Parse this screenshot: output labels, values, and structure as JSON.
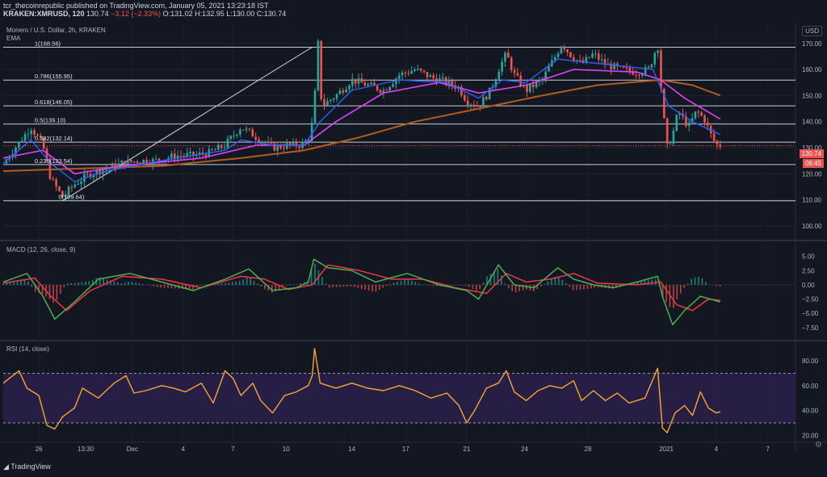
{
  "header": {
    "publisher": "tcr_thecoinrepublic published on TradingView.com, January 05, 2021 13:23:18 IST",
    "symbol": "KRAKEN:XMRUSD, 120",
    "last": "130.74",
    "change": "−3.12 (−2.33%)",
    "ohlc": "O:131.02 H:132.95 L:130.00 C:130.74"
  },
  "panes": {
    "main_title": "Monero / U.S. Dollar, 2h, KRAKEN",
    "ema_label": "EMA",
    "macd_label": "MACD (12, 26, close, 9)",
    "rsi_label": "RSI (14, close)",
    "currency_button": "USD",
    "price_tag": "130.74",
    "countdown_tag": "06:45"
  },
  "footer": {
    "brand": "TradingView"
  },
  "icons": {
    "settings": "gear-icon",
    "logo": "tradingview-logo-icon"
  },
  "colors": {
    "background": "#131722",
    "up": "#26a69a",
    "down": "#ef5350",
    "ema_fast": "#2962ff",
    "ema_mid": "#e040fb",
    "ema_slow": "#b35c1e",
    "macd": "#4caf50",
    "signal": "#f23645",
    "rsi": "#f7a72e",
    "rsi_band": "#2a1f4a"
  },
  "chart_data": [
    {
      "type": "candlestick",
      "title": "Monero / U.S. Dollar, 2h, KRAKEN",
      "ylim": [
        95,
        178
      ],
      "y_ticks": [
        100,
        110,
        120,
        130,
        140,
        150,
        160,
        170
      ],
      "x_ticks": [
        "26",
        "13:30",
        "Dec",
        "4",
        "7",
        "10",
        "14",
        "17",
        "21",
        "24",
        "28",
        "2021",
        "4",
        "7"
      ],
      "x_tick_pos": [
        0.045,
        0.104,
        0.163,
        0.227,
        0.29,
        0.357,
        0.44,
        0.508,
        0.585,
        0.658,
        0.738,
        0.837,
        0.9,
        0.965
      ],
      "fib_levels": [
        {
          "label": "1(168.56)",
          "value": 168.56
        },
        {
          "label": "0.786(155.95)",
          "value": 155.95
        },
        {
          "label": "0.618(146.05)",
          "value": 146.05
        },
        {
          "label": "0.5(139.10)",
          "value": 139.1
        },
        {
          "label": "0.382(132.14)",
          "value": 132.14
        },
        {
          "label": "0.236(123.54)",
          "value": 123.54
        },
        {
          "label": "0(109.64)",
          "value": 109.64
        }
      ],
      "trendline": {
        "from": [
          0.075,
          109.6
        ],
        "to": [
          0.39,
          168.6
        ]
      },
      "close_path": [
        [
          0,
          124
        ],
        [
          0.02,
          132
        ],
        [
          0.035,
          138
        ],
        [
          0.05,
          131
        ],
        [
          0.06,
          118
        ],
        [
          0.075,
          111
        ],
        [
          0.09,
          116
        ],
        [
          0.11,
          120
        ],
        [
          0.13,
          122
        ],
        [
          0.15,
          124
        ],
        [
          0.17,
          125
        ],
        [
          0.19,
          125
        ],
        [
          0.22,
          127
        ],
        [
          0.24,
          127
        ],
        [
          0.26,
          128
        ],
        [
          0.28,
          131
        ],
        [
          0.3,
          138
        ],
        [
          0.32,
          134
        ],
        [
          0.34,
          130
        ],
        [
          0.36,
          131
        ],
        [
          0.375,
          131
        ],
        [
          0.385,
          133
        ],
        [
          0.392,
          142
        ],
        [
          0.397,
          172
        ],
        [
          0.402,
          146
        ],
        [
          0.42,
          150
        ],
        [
          0.44,
          156
        ],
        [
          0.46,
          154
        ],
        [
          0.48,
          152
        ],
        [
          0.5,
          158
        ],
        [
          0.52,
          160
        ],
        [
          0.54,
          157
        ],
        [
          0.56,
          155
        ],
        [
          0.575,
          153
        ],
        [
          0.585,
          148
        ],
        [
          0.6,
          146
        ],
        [
          0.615,
          152
        ],
        [
          0.625,
          160
        ],
        [
          0.635,
          166
        ],
        [
          0.645,
          158
        ],
        [
          0.66,
          152
        ],
        [
          0.68,
          156
        ],
        [
          0.695,
          164
        ],
        [
          0.705,
          170
        ],
        [
          0.715,
          166
        ],
        [
          0.73,
          162
        ],
        [
          0.745,
          166
        ],
        [
          0.76,
          162
        ],
        [
          0.78,
          160
        ],
        [
          0.8,
          159
        ],
        [
          0.815,
          160
        ],
        [
          0.826,
          170
        ],
        [
          0.832,
          146
        ],
        [
          0.838,
          130
        ],
        [
          0.845,
          135
        ],
        [
          0.852,
          144
        ],
        [
          0.865,
          138
        ],
        [
          0.875,
          144
        ],
        [
          0.885,
          141
        ],
        [
          0.893,
          135
        ],
        [
          0.9,
          131
        ],
        [
          0.905,
          131
        ]
      ],
      "ema_fast_path": [
        [
          0,
          124
        ],
        [
          0.035,
          133
        ],
        [
          0.06,
          124
        ],
        [
          0.09,
          117
        ],
        [
          0.13,
          121
        ],
        [
          0.2,
          125
        ],
        [
          0.28,
          129
        ],
        [
          0.3,
          133
        ],
        [
          0.34,
          131
        ],
        [
          0.38,
          131
        ],
        [
          0.4,
          140
        ],
        [
          0.44,
          152
        ],
        [
          0.5,
          156
        ],
        [
          0.56,
          155
        ],
        [
          0.6,
          149
        ],
        [
          0.63,
          156
        ],
        [
          0.66,
          155
        ],
        [
          0.7,
          164
        ],
        [
          0.76,
          162
        ],
        [
          0.82,
          160
        ],
        [
          0.84,
          146
        ],
        [
          0.87,
          140
        ],
        [
          0.905,
          135
        ]
      ],
      "ema_mid_path": [
        [
          0,
          126
        ],
        [
          0.05,
          129
        ],
        [
          0.09,
          120
        ],
        [
          0.15,
          123
        ],
        [
          0.25,
          126
        ],
        [
          0.32,
          131
        ],
        [
          0.38,
          131
        ],
        [
          0.42,
          140
        ],
        [
          0.48,
          151
        ],
        [
          0.55,
          155
        ],
        [
          0.6,
          151
        ],
        [
          0.66,
          154
        ],
        [
          0.72,
          160
        ],
        [
          0.8,
          159
        ],
        [
          0.83,
          156
        ],
        [
          0.86,
          149
        ],
        [
          0.905,
          141
        ]
      ],
      "ema_slow_path": [
        [
          0,
          121
        ],
        [
          0.1,
          122
        ],
        [
          0.2,
          123
        ],
        [
          0.3,
          126
        ],
        [
          0.38,
          129
        ],
        [
          0.45,
          134
        ],
        [
          0.52,
          140
        ],
        [
          0.6,
          145
        ],
        [
          0.68,
          150
        ],
        [
          0.75,
          154
        ],
        [
          0.83,
          156
        ],
        [
          0.87,
          154
        ],
        [
          0.905,
          150
        ]
      ]
    },
    {
      "type": "line",
      "title": "MACD (12, 26, close, 9)",
      "ylim": [
        -9.5,
        7.5
      ],
      "y_ticks": [
        "5.00",
        "2.50",
        "0.00",
        "−2.50",
        "−5.00",
        "−7.50"
      ],
      "y_tick_values": [
        5,
        2.5,
        0,
        -2.5,
        -5,
        -7.5
      ],
      "macd_path": [
        [
          0,
          0.5
        ],
        [
          0.03,
          2
        ],
        [
          0.05,
          -2
        ],
        [
          0.065,
          -6
        ],
        [
          0.09,
          -3
        ],
        [
          0.12,
          1
        ],
        [
          0.16,
          2
        ],
        [
          0.2,
          0.5
        ],
        [
          0.24,
          -1
        ],
        [
          0.28,
          1
        ],
        [
          0.31,
          2.8
        ],
        [
          0.34,
          -1
        ],
        [
          0.37,
          -0.5
        ],
        [
          0.385,
          0.5
        ],
        [
          0.392,
          4.5
        ],
        [
          0.41,
          3
        ],
        [
          0.44,
          2.5
        ],
        [
          0.47,
          0.5
        ],
        [
          0.51,
          2
        ],
        [
          0.55,
          0
        ],
        [
          0.585,
          -1
        ],
        [
          0.6,
          -2.5
        ],
        [
          0.625,
          3.5
        ],
        [
          0.645,
          0
        ],
        [
          0.67,
          -0.5
        ],
        [
          0.7,
          3
        ],
        [
          0.72,
          1
        ],
        [
          0.745,
          0
        ],
        [
          0.77,
          -0.5
        ],
        [
          0.8,
          0.5
        ],
        [
          0.826,
          1.5
        ],
        [
          0.832,
          -2
        ],
        [
          0.845,
          -7
        ],
        [
          0.86,
          -4.5
        ],
        [
          0.88,
          -2
        ],
        [
          0.905,
          -3
        ]
      ],
      "signal_path": [
        [
          0,
          0.3
        ],
        [
          0.04,
          1.2
        ],
        [
          0.06,
          -2
        ],
        [
          0.08,
          -4.5
        ],
        [
          0.11,
          -1
        ],
        [
          0.15,
          1.5
        ],
        [
          0.2,
          1
        ],
        [
          0.25,
          -0.5
        ],
        [
          0.3,
          1.5
        ],
        [
          0.33,
          1
        ],
        [
          0.36,
          -0.8
        ],
        [
          0.39,
          0
        ],
        [
          0.41,
          3.5
        ],
        [
          0.45,
          2.5
        ],
        [
          0.49,
          1
        ],
        [
          0.53,
          1
        ],
        [
          0.57,
          -0.5
        ],
        [
          0.61,
          -1.5
        ],
        [
          0.635,
          2
        ],
        [
          0.66,
          0.5
        ],
        [
          0.69,
          1
        ],
        [
          0.72,
          2
        ],
        [
          0.75,
          0.3
        ],
        [
          0.8,
          0
        ],
        [
          0.83,
          0.5
        ],
        [
          0.85,
          -3.5
        ],
        [
          0.87,
          -4.5
        ],
        [
          0.89,
          -2.5
        ],
        [
          0.905,
          -2.7
        ]
      ]
    },
    {
      "type": "line",
      "title": "RSI (14, close)",
      "ylim": [
        15,
        95
      ],
      "y_ticks": [
        "80.00",
        "60.00",
        "40.00",
        "20.00"
      ],
      "y_tick_values": [
        80,
        60,
        40,
        20
      ],
      "bands": [
        30,
        70
      ],
      "rsi_path": [
        [
          0,
          62
        ],
        [
          0.02,
          72
        ],
        [
          0.03,
          58
        ],
        [
          0.045,
          52
        ],
        [
          0.055,
          28
        ],
        [
          0.065,
          25
        ],
        [
          0.075,
          35
        ],
        [
          0.09,
          42
        ],
        [
          0.1,
          58
        ],
        [
          0.12,
          50
        ],
        [
          0.14,
          62
        ],
        [
          0.155,
          68
        ],
        [
          0.165,
          54
        ],
        [
          0.18,
          56
        ],
        [
          0.2,
          60
        ],
        [
          0.215,
          58
        ],
        [
          0.23,
          55
        ],
        [
          0.25,
          62
        ],
        [
          0.265,
          46
        ],
        [
          0.28,
          72
        ],
        [
          0.29,
          66
        ],
        [
          0.3,
          52
        ],
        [
          0.315,
          62
        ],
        [
          0.325,
          48
        ],
        [
          0.34,
          38
        ],
        [
          0.355,
          52
        ],
        [
          0.37,
          55
        ],
        [
          0.385,
          60
        ],
        [
          0.39,
          68
        ],
        [
          0.393,
          90
        ],
        [
          0.4,
          62
        ],
        [
          0.42,
          58
        ],
        [
          0.44,
          62
        ],
        [
          0.46,
          58
        ],
        [
          0.48,
          56
        ],
        [
          0.5,
          60
        ],
        [
          0.52,
          56
        ],
        [
          0.54,
          50
        ],
        [
          0.56,
          54
        ],
        [
          0.575,
          44
        ],
        [
          0.585,
          30
        ],
        [
          0.595,
          40
        ],
        [
          0.61,
          58
        ],
        [
          0.625,
          62
        ],
        [
          0.635,
          72
        ],
        [
          0.645,
          55
        ],
        [
          0.66,
          48
        ],
        [
          0.675,
          56
        ],
        [
          0.69,
          60
        ],
        [
          0.705,
          58
        ],
        [
          0.72,
          64
        ],
        [
          0.73,
          48
        ],
        [
          0.745,
          56
        ],
        [
          0.76,
          48
        ],
        [
          0.775,
          54
        ],
        [
          0.79,
          46
        ],
        [
          0.81,
          50
        ],
        [
          0.826,
          74
        ],
        [
          0.832,
          26
        ],
        [
          0.838,
          22
        ],
        [
          0.848,
          38
        ],
        [
          0.86,
          44
        ],
        [
          0.87,
          36
        ],
        [
          0.88,
          55
        ],
        [
          0.89,
          42
        ],
        [
          0.9,
          38
        ],
        [
          0.905,
          39
        ]
      ]
    }
  ]
}
